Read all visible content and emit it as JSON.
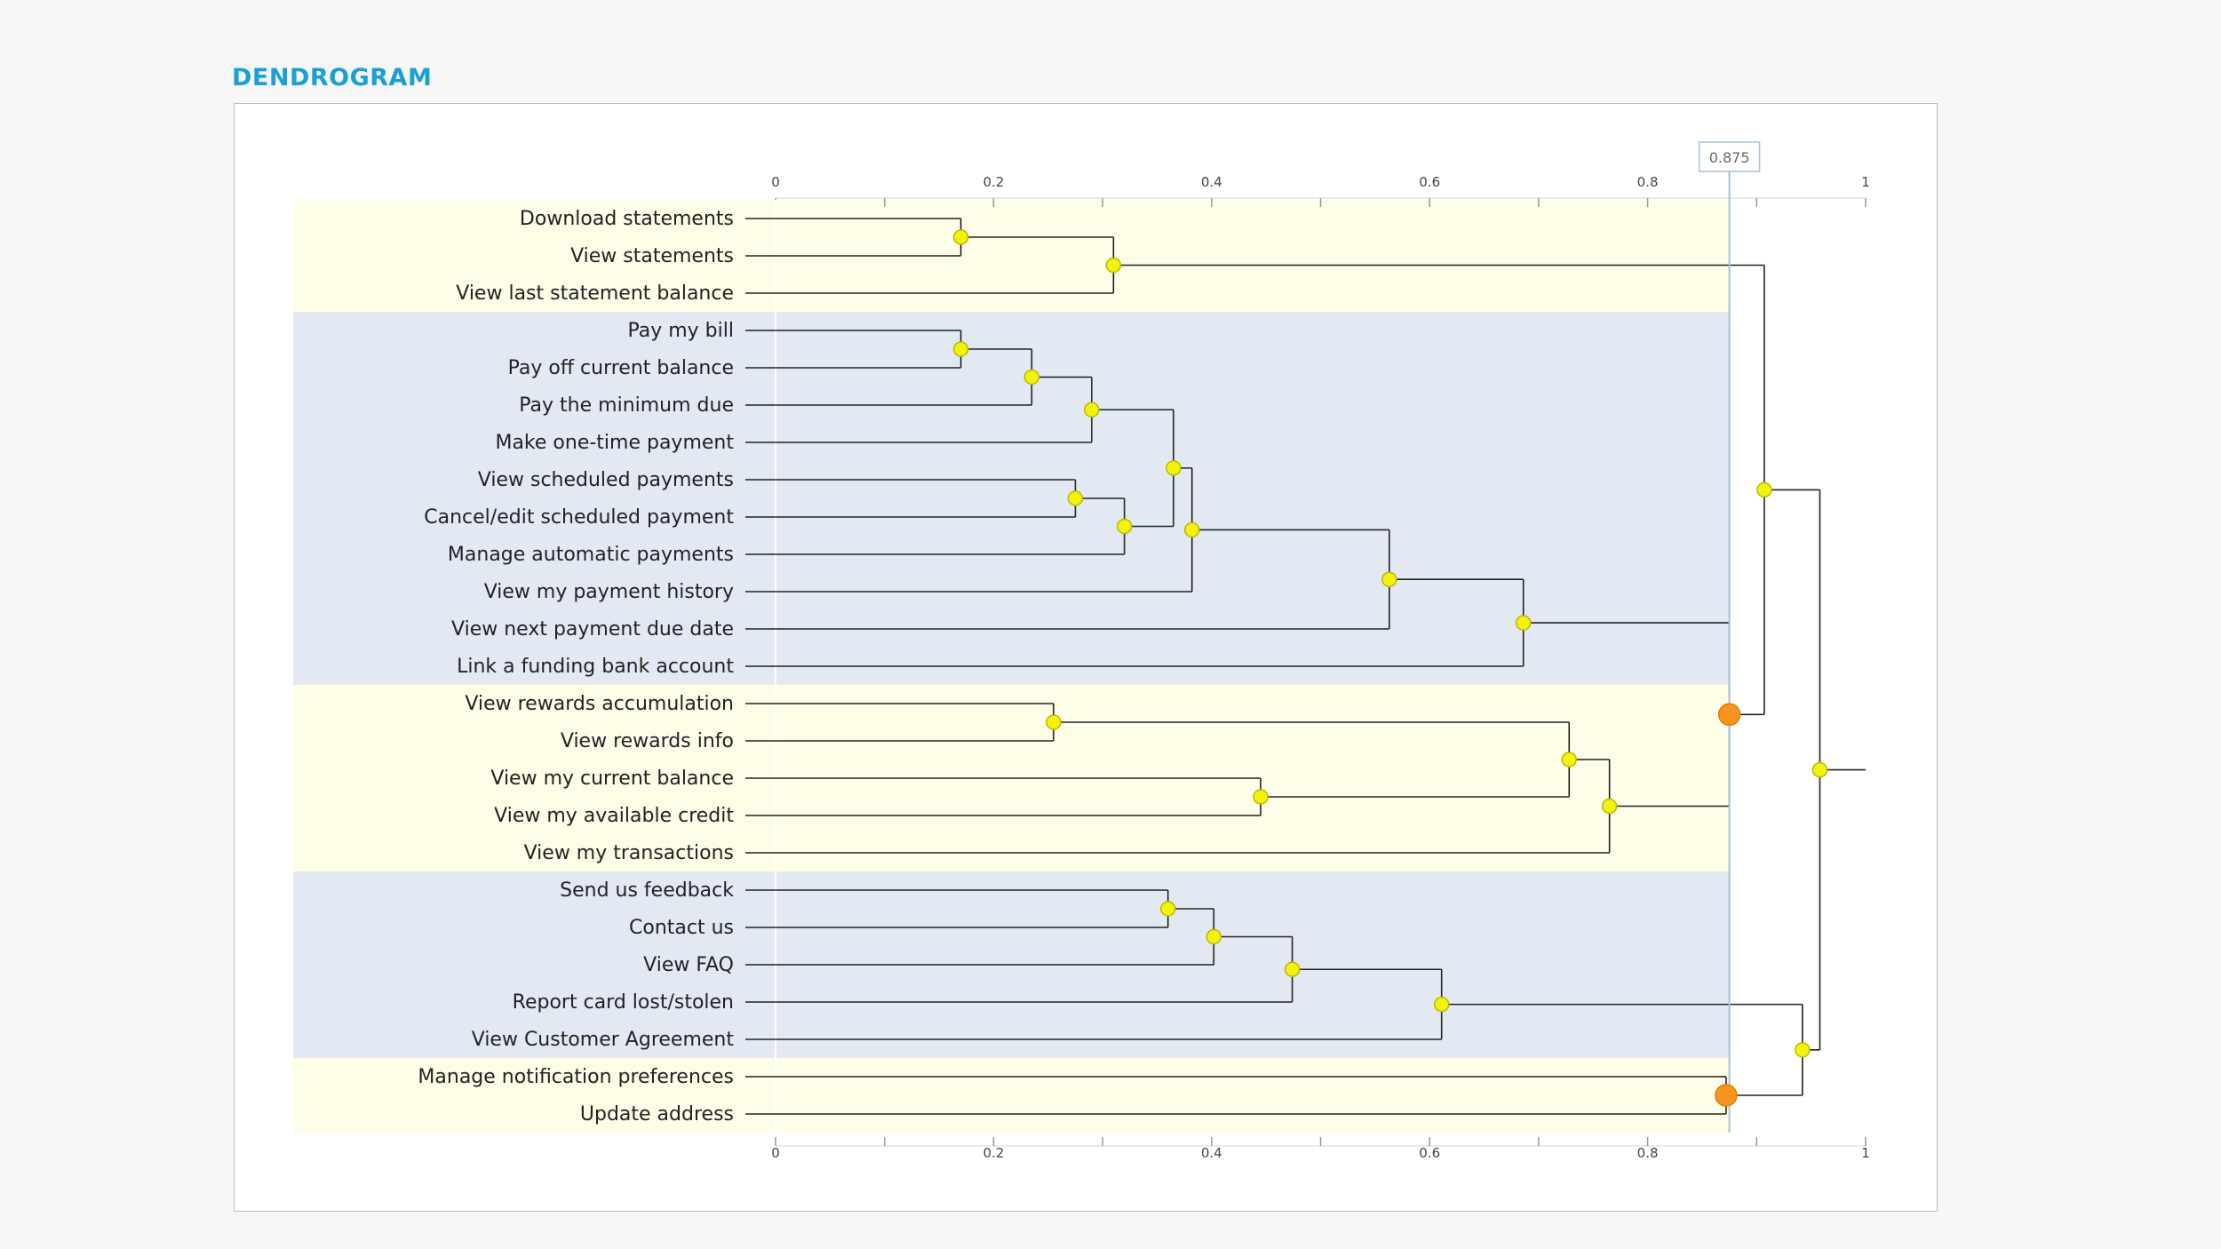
{
  "title": "DENDROGRAM",
  "colors": {
    "title": "#1aa0d6",
    "band_yellow": "#fdfde8",
    "band_blue": "#e3e9f2",
    "node": "#f2f20a",
    "node_stroke": "#b9b900",
    "cluster_node": "#f7941d",
    "cut_line": "#a9c1d4",
    "link": "#222222"
  },
  "chart_data": {
    "type": "dendrogram",
    "orientation": "right-to-left",
    "xlim": [
      0,
      1
    ],
    "ticks": [
      {
        "value": 0,
        "label": "0"
      },
      {
        "value": 0.1,
        "label": ""
      },
      {
        "value": 0.2,
        "label": "0.2"
      },
      {
        "value": 0.3,
        "label": ""
      },
      {
        "value": 0.4,
        "label": "0.4"
      },
      {
        "value": 0.5,
        "label": ""
      },
      {
        "value": 0.6,
        "label": "0.6"
      },
      {
        "value": 0.7,
        "label": ""
      },
      {
        "value": 0.8,
        "label": "0.8"
      },
      {
        "value": 0.9,
        "label": ""
      },
      {
        "value": 1,
        "label": "1"
      }
    ],
    "cut": {
      "value": 0.875,
      "label": "0.875"
    },
    "root_value": 1,
    "leaves": [
      "Download statements",
      "View statements",
      "View last statement balance",
      "Pay my bill",
      "Pay off current balance",
      "Pay the minimum due",
      "Make one-time payment",
      "View scheduled payments",
      "Cancel/edit scheduled payment",
      "Manage automatic payments",
      "View my payment history",
      "View next payment due date",
      "Link a funding bank account",
      "View rewards accumulation",
      "View rewards info",
      "View my current balance",
      "View my available credit",
      "View my transactions",
      "Send us feedback",
      "Contact us",
      "View FAQ",
      "Report card lost/stolen",
      "View Customer Agreement",
      "Manage notification preferences",
      "Update address"
    ],
    "clusters": [
      {
        "from": 0,
        "to": 2,
        "band": "yellow"
      },
      {
        "from": 3,
        "to": 12,
        "band": "blue"
      },
      {
        "from": 13,
        "to": 17,
        "band": "yellow"
      },
      {
        "from": 18,
        "to": 22,
        "band": "blue"
      },
      {
        "from": 23,
        "to": 24,
        "band": "yellow"
      }
    ],
    "merges": [
      {
        "id": "A",
        "children": [
          "L0",
          "L1"
        ],
        "height": 0.17
      },
      {
        "id": "B",
        "children": [
          "A",
          "L2"
        ],
        "height": 0.31
      },
      {
        "id": "C",
        "children": [
          "L3",
          "L4"
        ],
        "height": 0.17
      },
      {
        "id": "D",
        "children": [
          "C",
          "L5"
        ],
        "height": 0.235
      },
      {
        "id": "E",
        "children": [
          "D",
          "L6"
        ],
        "height": 0.29
      },
      {
        "id": "F",
        "children": [
          "L7",
          "L8"
        ],
        "height": 0.275
      },
      {
        "id": "G",
        "children": [
          "F",
          "L9"
        ],
        "height": 0.32
      },
      {
        "id": "H",
        "children": [
          "E",
          "G"
        ],
        "height": 0.365
      },
      {
        "id": "I",
        "children": [
          "H",
          "L10"
        ],
        "height": 0.382
      },
      {
        "id": "J",
        "children": [
          "I",
          "L11"
        ],
        "height": 0.563
      },
      {
        "id": "K",
        "children": [
          "J",
          "L12"
        ],
        "height": 0.686
      },
      {
        "id": "M",
        "children": [
          "L13",
          "L14"
        ],
        "height": 0.255
      },
      {
        "id": "N",
        "children": [
          "L15",
          "L16"
        ],
        "height": 0.445
      },
      {
        "id": "P",
        "children": [
          "M",
          "N"
        ],
        "height": 0.728
      },
      {
        "id": "Q",
        "children": [
          "P",
          "L17"
        ],
        "height": 0.765
      },
      {
        "id": "R",
        "children": [
          "K",
          "Q"
        ],
        "height": 0.875,
        "cluster": true
      },
      {
        "id": "S",
        "children": [
          "B",
          "R"
        ],
        "height": 0.907
      },
      {
        "id": "T",
        "children": [
          "L18",
          "L19"
        ],
        "height": 0.36
      },
      {
        "id": "U",
        "children": [
          "T",
          "L20"
        ],
        "height": 0.402
      },
      {
        "id": "V",
        "children": [
          "U",
          "L21"
        ],
        "height": 0.474
      },
      {
        "id": "W",
        "children": [
          "V",
          "L22"
        ],
        "height": 0.611
      },
      {
        "id": "X",
        "children": [
          "L23",
          "L24"
        ],
        "height": 0.872,
        "cluster": true
      },
      {
        "id": "Y",
        "children": [
          "W",
          "X"
        ],
        "height": 0.942
      },
      {
        "id": "Z",
        "children": [
          "S",
          "Y"
        ],
        "height": 0.958
      }
    ]
  }
}
